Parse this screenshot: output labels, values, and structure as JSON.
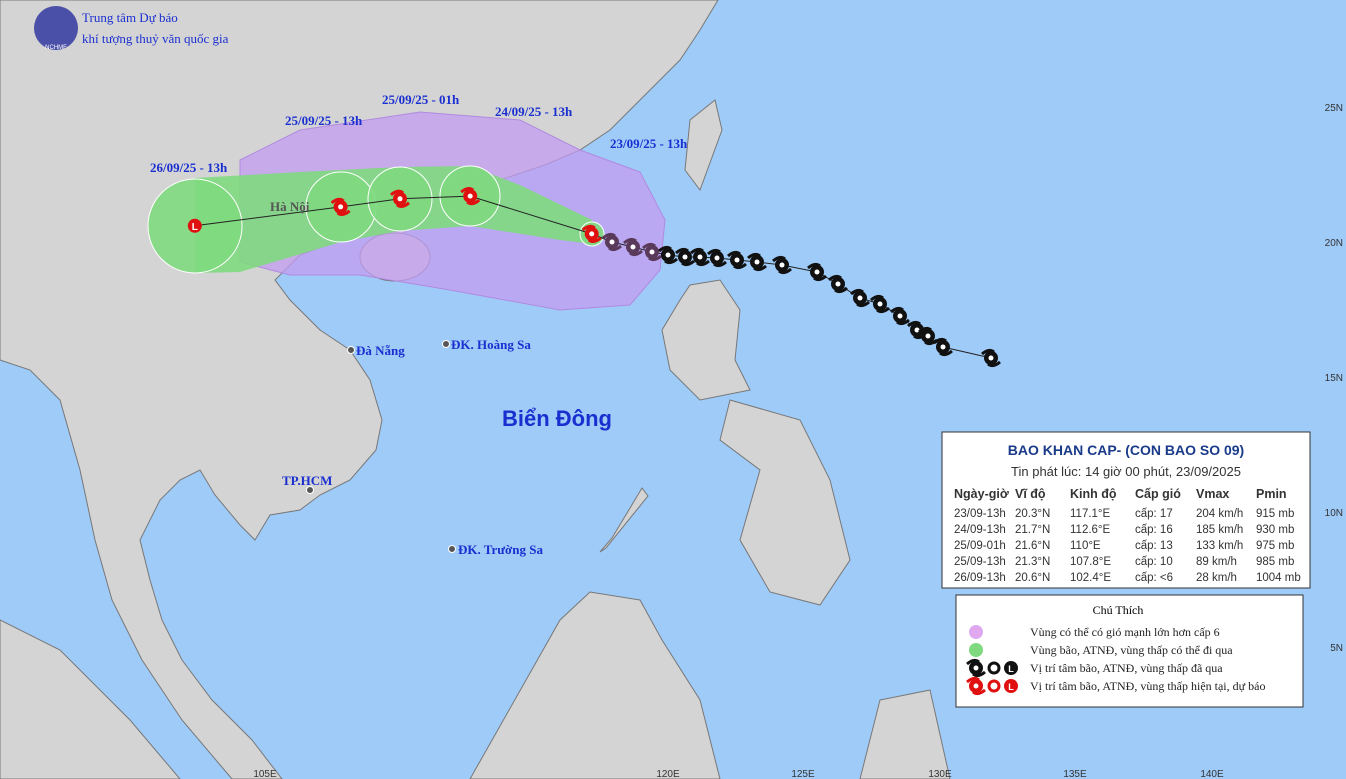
{
  "header": {
    "org_line1": "Trung tâm Dự báo",
    "org_line2": "khí tượng thuỷ văn quốc gia",
    "logo_text": "NCHMF"
  },
  "track_labels": [
    "26/09/25 - 13h",
    "25/09/25 - 13h",
    "25/09/25 - 01h",
    "24/09/25 - 13h",
    "23/09/25 - 13h"
  ],
  "places": [
    "Hà Nội",
    "Đà Nẵng",
    "ĐK. Hoàng Sa",
    "TP.HCM",
    "ĐK. Trường Sa"
  ],
  "sea_label": "Biển Đông",
  "lat_labels": [
    "25N",
    "20N",
    "15N",
    "10N",
    "5N"
  ],
  "lon_labels": [
    "105E",
    "120E",
    "125E",
    "130E",
    "135E",
    "140E"
  ],
  "bulletin": {
    "title": "BAO KHAN CAP- (CON BAO SO 09)",
    "issued": "Tin phát lúc: 14 giờ 00 phút, 23/09/2025",
    "columns": [
      "Ngày-giờ",
      "Vĩ độ",
      "Kinh độ",
      "Cấp gió",
      "Vmax",
      "Pmin"
    ],
    "rows": [
      [
        "23/09-13h",
        "20.3°N",
        "117.1°E",
        "cấp: 17",
        "204 km/h",
        "915 mb"
      ],
      [
        "24/09-13h",
        "21.7°N",
        "112.6°E",
        "cấp: 16",
        "185 km/h",
        "930 mb"
      ],
      [
        "25/09-01h",
        "21.6°N",
        "110°E",
        "cấp: 13",
        "133 km/h",
        "975 mb"
      ],
      [
        "25/09-13h",
        "21.3°N",
        "107.8°E",
        "cấp: 10",
        "89 km/h",
        "985 mb"
      ],
      [
        "26/09-13h",
        "20.6°N",
        "102.4°E",
        "cấp: <6",
        "28 km/h",
        "1004 mb"
      ]
    ]
  },
  "legend": {
    "title": "Chú Thích",
    "items": [
      "Vùng có thể có gió mạnh lớn hơn cấp 6",
      "Vùng bão, ATNĐ, vùng thấp có thể đi qua",
      "Vị trí tâm bão, ATNĐ, vùng thấp đã qua",
      "Vị trí tâm bão, ATNĐ, vùng thấp hiện tại, dự báo"
    ]
  }
}
